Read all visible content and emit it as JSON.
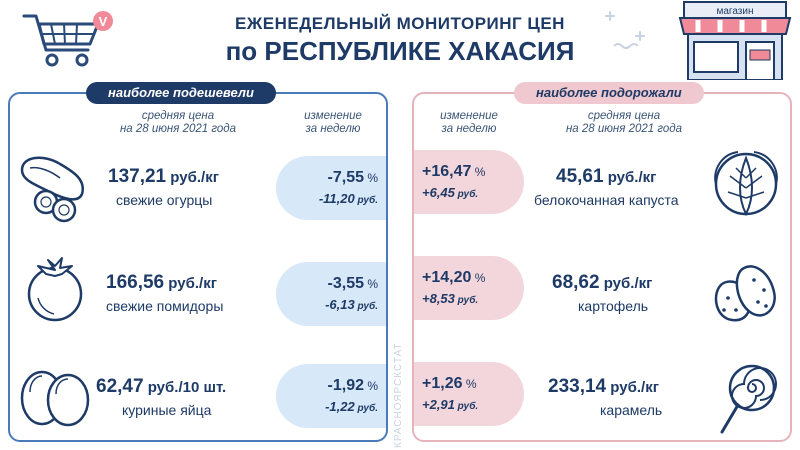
{
  "header": {
    "title_line1": "ЕЖЕНЕДЕЛЬНЫЙ МОНИТОРИНГ ЦЕН",
    "title_line2": "по РЕСПУБЛИКЕ ХАКАСИЯ",
    "shop_sign": "магазин",
    "logo_letter": "V"
  },
  "left": {
    "tag": "наиболее подешевели",
    "col_price": [
      "средняя цена",
      "на 28 июня 2021 года"
    ],
    "col_change": [
      "изменение",
      "за неделю"
    ],
    "items": [
      {
        "price": "137,21",
        "unit": " руб./кг",
        "name": "свежие огурцы",
        "pct": "-7,55",
        "rub": "-11,20",
        "icon": "cucumber-icon"
      },
      {
        "price": "166,56",
        "unit": " руб./кг",
        "name": "свежие помидоры",
        "pct": "-3,55",
        "rub": "-6,13",
        "icon": "tomato-icon"
      },
      {
        "price": "62,47",
        "unit": " руб./10 шт.",
        "name": "куриные яйца",
        "pct": "-1,92",
        "rub": "-1,22",
        "icon": "eggs-icon"
      }
    ]
  },
  "right": {
    "tag": "наиболее подорожали",
    "col_change": [
      "изменение",
      "за неделю"
    ],
    "col_price": [
      "средняя цена",
      "на 28 июня 2021 года"
    ],
    "items": [
      {
        "price": "45,61",
        "unit": " руб./кг",
        "name": "белокочанная капуста",
        "pct": "+16,47",
        "rub": "+6,45",
        "icon": "cabbage-icon"
      },
      {
        "price": "68,62",
        "unit": " руб./кг",
        "name": "картофель",
        "pct": "+14,20",
        "rub": "+8,53",
        "icon": "potato-icon"
      },
      {
        "price": "233,14",
        "unit": " руб./кг",
        "name": "карамель",
        "pct": "+1,26",
        "rub": "+2,91",
        "icon": "lollipop-icon"
      }
    ]
  },
  "symbols": {
    "pct": " %",
    "rub": " руб."
  },
  "vertical_credit": "КРАСНОЯРСКСТАТ",
  "colors": {
    "navy": "#1e3a66",
    "blue_border": "#4a7ab8",
    "pink_border": "#e6b3bd",
    "blue_pill": "#d7e8f8",
    "pink_pill": "#f3d6db",
    "pink_accent": "#f08a98"
  }
}
